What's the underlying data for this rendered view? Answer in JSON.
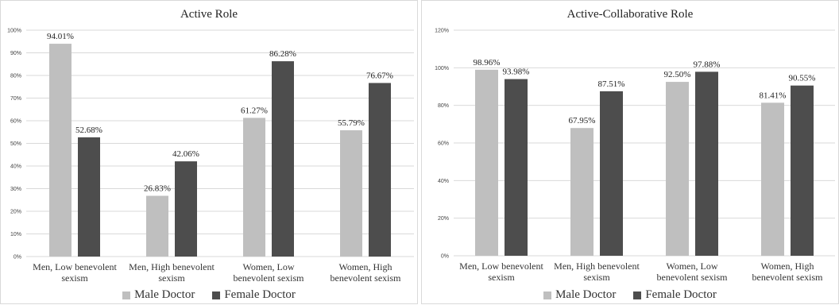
{
  "chart_data": [
    {
      "type": "bar",
      "title": "Active Role",
      "categories": [
        [
          "Men, Low benevolent",
          "sexism"
        ],
        [
          "Men, High benevolent",
          "sexism"
        ],
        [
          "Women, Low",
          "benevolent sexism"
        ],
        [
          "Women, High",
          "benevolent sexism"
        ]
      ],
      "series": [
        {
          "name": "Male Doctor",
          "color": "#bfbfbf",
          "values": [
            94.01,
            26.83,
            61.27,
            55.79
          ],
          "labels": [
            "94.01%",
            "26.83%",
            "61.27%",
            "55.79%"
          ]
        },
        {
          "name": "Female Doctor",
          "color": "#4d4d4d",
          "values": [
            52.68,
            42.06,
            86.28,
            76.67
          ],
          "labels": [
            "52.68%",
            "42.06%",
            "86.28%",
            "76.67%"
          ]
        }
      ],
      "ylim": [
        0,
        100
      ],
      "yticks": [
        0,
        10,
        20,
        30,
        40,
        50,
        60,
        70,
        80,
        90,
        100
      ],
      "ytick_labels": [
        "0%",
        "10%",
        "20%",
        "30%",
        "40%",
        "50%",
        "60%",
        "70%",
        "80%",
        "90%",
        "100%"
      ],
      "grid": true,
      "legend": "bottom"
    },
    {
      "type": "bar",
      "title": "Active-Collaborative Role",
      "categories": [
        [
          "Men, Low benevolent",
          "sexism"
        ],
        [
          "Men, High benevolent",
          "sexism"
        ],
        [
          "Women, Low",
          "benevolent sexism"
        ],
        [
          "Women, High",
          "benevolent sexism"
        ]
      ],
      "series": [
        {
          "name": "Male Doctor",
          "color": "#bfbfbf",
          "values": [
            98.96,
            67.95,
            92.5,
            81.41
          ],
          "labels": [
            "98.96%",
            "67.95%",
            "92.50%",
            "81.41%"
          ]
        },
        {
          "name": "Female Doctor",
          "color": "#4d4d4d",
          "values": [
            93.98,
            87.51,
            97.88,
            90.55
          ],
          "labels": [
            "93.98%",
            "87.51%",
            "97.88%",
            "90.55%"
          ]
        }
      ],
      "ylim": [
        0,
        120
      ],
      "yticks": [
        0,
        20,
        40,
        60,
        80,
        100,
        120
      ],
      "ytick_labels": [
        "0%",
        "20%",
        "40%",
        "60%",
        "80%",
        "100%",
        "120%"
      ],
      "grid": true,
      "legend": "bottom"
    }
  ]
}
